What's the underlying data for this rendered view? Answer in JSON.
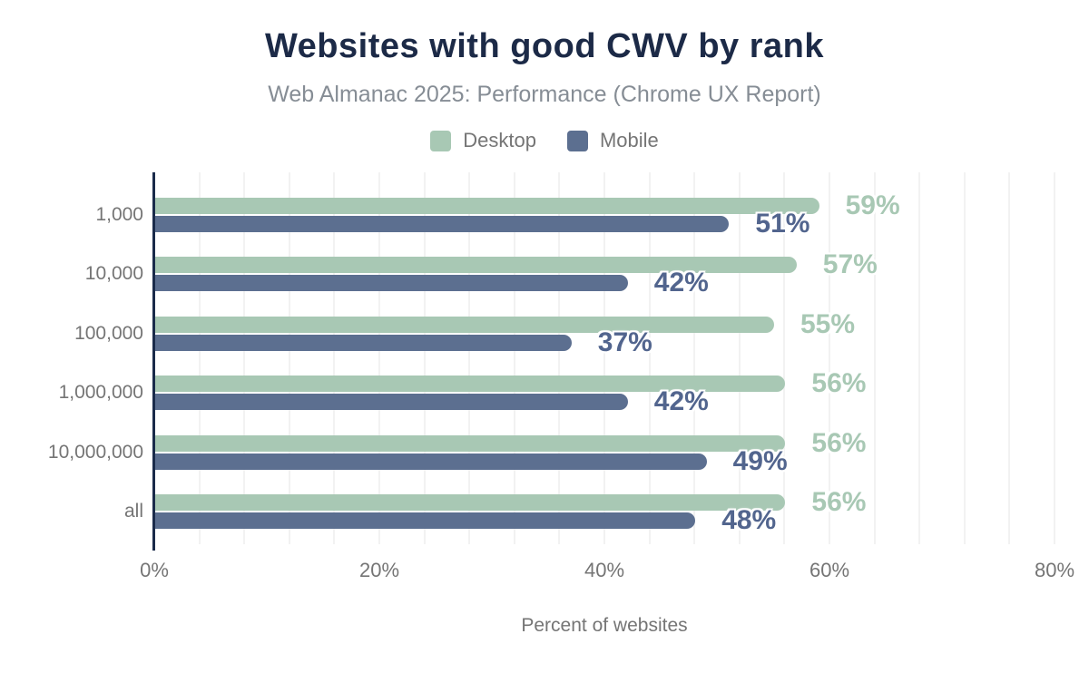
{
  "header": {
    "title": "Websites with good CWV by rank",
    "subtitle": "Web Almanac 2025: Performance (Chrome UX Report)"
  },
  "chart_data": {
    "type": "bar",
    "orientation": "horizontal",
    "title": "Websites with good CWV by rank",
    "subtitle": "Web Almanac 2025: Performance (Chrome UX Report)",
    "categories": [
      "1,000",
      "10,000",
      "100,000",
      "1,000,000",
      "10,000,000",
      "all"
    ],
    "series": [
      {
        "name": "Desktop",
        "color": "#a8c8b4",
        "label_color": "#a8c8b4",
        "values": [
          59,
          57,
          55,
          56,
          56,
          56
        ]
      },
      {
        "name": "Mobile",
        "color": "#5c6f90",
        "label_color": "#52658e",
        "values": [
          51,
          42,
          37,
          42,
          49,
          48
        ]
      }
    ],
    "value_suffix": "%",
    "xlabel": "Percent of websites",
    "ylabel": "",
    "xlim": [
      0,
      80
    ],
    "x_ticks": [
      {
        "label": "0%",
        "value": 0
      },
      {
        "label": "20%",
        "value": 20
      },
      {
        "label": "40%",
        "value": 40
      },
      {
        "label": "60%",
        "value": 60
      },
      {
        "label": "80%",
        "value": 80
      }
    ],
    "grid": "vertical-minor",
    "grid_minor_step_percent": 4,
    "legend_position": "top"
  },
  "colors": {
    "title": "#1c2a47",
    "subtitle": "#868d95",
    "axis_line": "#1a2b4a",
    "axis_text": "#757575",
    "gridline": "#f2f2f2",
    "background": "#ffffff"
  }
}
